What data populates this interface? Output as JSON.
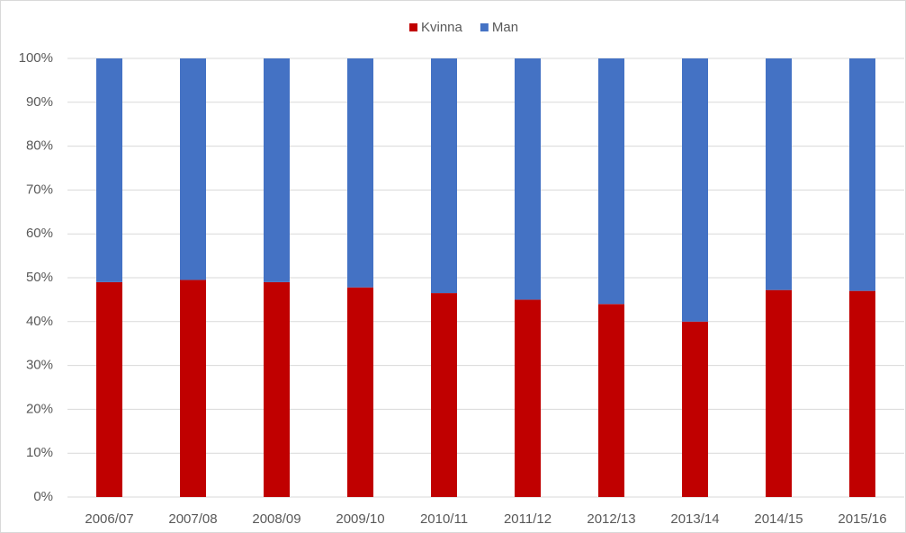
{
  "chart_data": {
    "type": "stacked_bar",
    "categories": [
      "2006/07",
      "2007/08",
      "2008/09",
      "2009/10",
      "2010/11",
      "2011/12",
      "2012/13",
      "2013/14",
      "2014/15",
      "2015/16"
    ],
    "series": [
      {
        "name": "Kvinna",
        "color": "#c00000",
        "values": [
          49,
          49.5,
          49,
          47.8,
          46.5,
          45,
          44,
          40,
          47.2,
          47
        ]
      },
      {
        "name": "Man",
        "color": "#4472c4",
        "values": [
          51,
          50.5,
          51,
          52.2,
          53.5,
          55,
          56,
          60,
          52.8,
          53
        ]
      }
    ],
    "ylim": [
      0,
      100
    ],
    "yticks": [
      {
        "value": 0,
        "label": "0%"
      },
      {
        "value": 10,
        "label": "10%"
      },
      {
        "value": 20,
        "label": "20%"
      },
      {
        "value": 30,
        "label": "30%"
      },
      {
        "value": 40,
        "label": "40%"
      },
      {
        "value": 50,
        "label": "50%"
      },
      {
        "value": 60,
        "label": "60%"
      },
      {
        "value": 70,
        "label": "70%"
      },
      {
        "value": 80,
        "label": "80%"
      },
      {
        "value": 90,
        "label": "90%"
      },
      {
        "value": 100,
        "label": "100%"
      }
    ],
    "grid": true,
    "legend": "top"
  }
}
